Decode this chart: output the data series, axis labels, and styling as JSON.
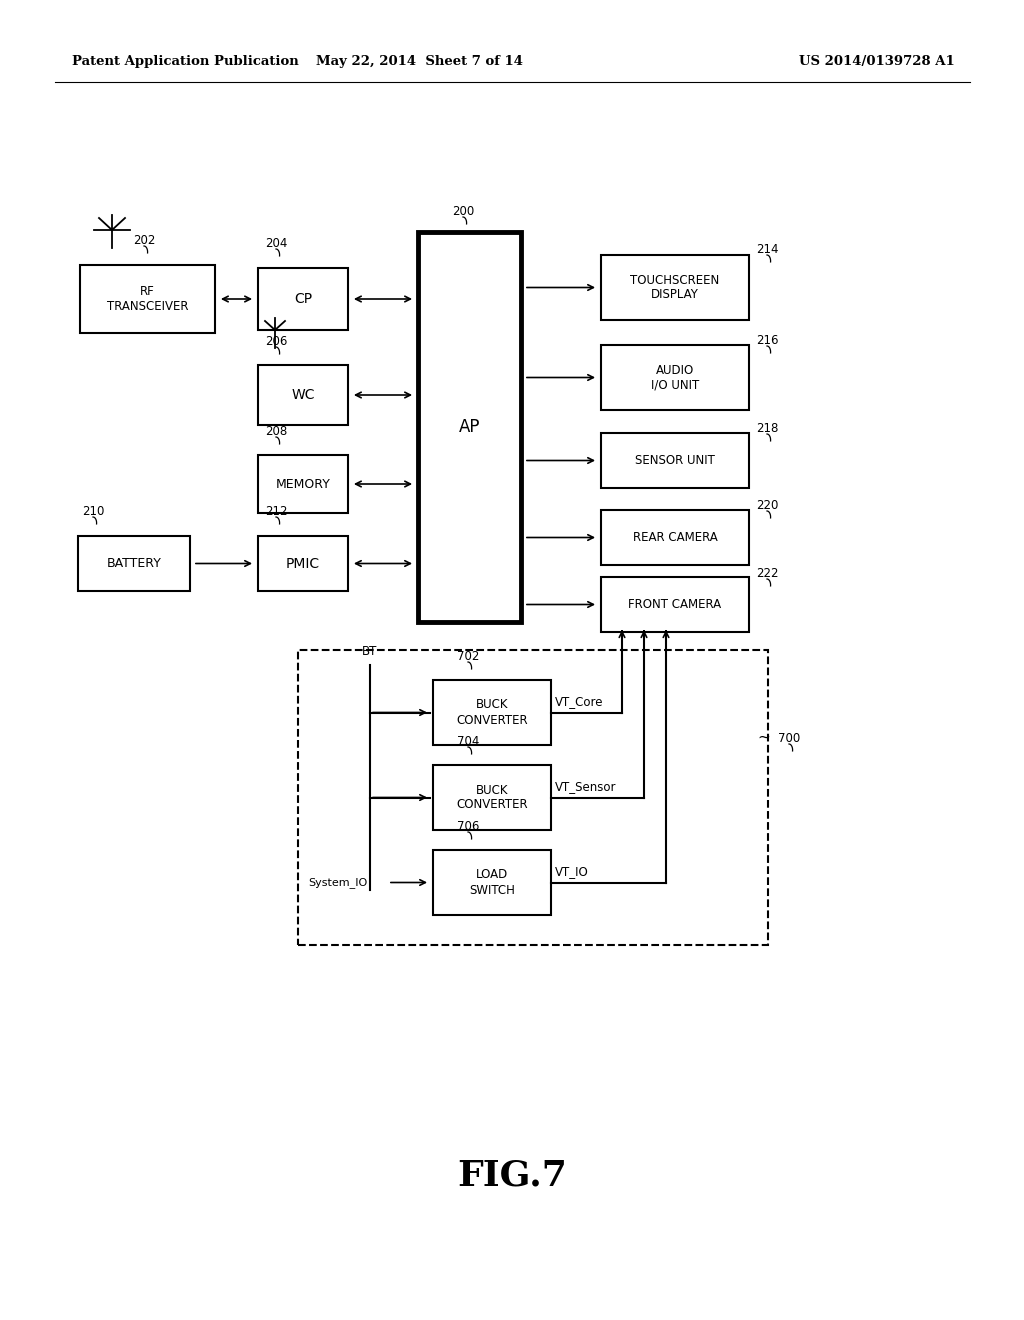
{
  "header_left": "Patent Application Publication",
  "header_mid": "May 22, 2014  Sheet 7 of 14",
  "header_right": "US 2014/0139728 A1",
  "figure_label": "FIG.7",
  "bg_color": "#ffffff",
  "line_color": "#000000"
}
